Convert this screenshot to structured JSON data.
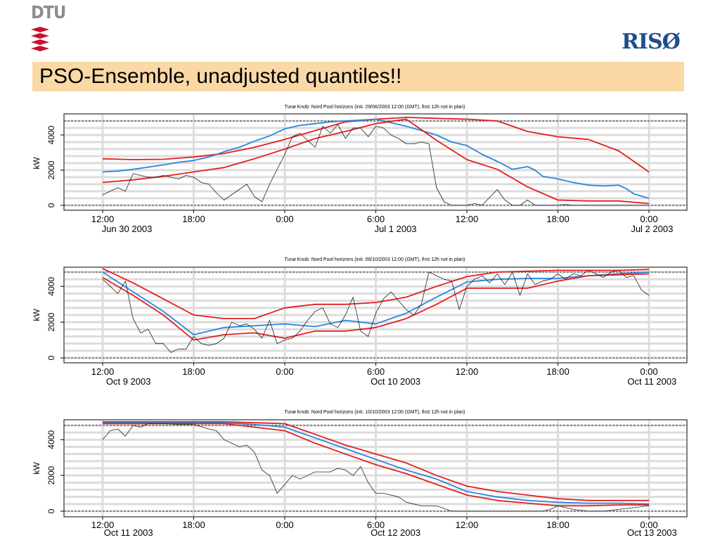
{
  "logos": {
    "dtu": "DTU",
    "riso": "RISØ"
  },
  "slide": {
    "title": "PSO-Ensemble, unadjusted quantiles!!"
  },
  "colors": {
    "quantile": "#e41e1e",
    "median": "#2a86e0",
    "observed": "#222222",
    "title_bg": "#fad9a6"
  },
  "chart_data": [
    {
      "type": "line",
      "title": "Tunø Knob: Nord Pool horizons (init. 29/06/2003 12:00 (GMT), first 12h not in plan)",
      "ylabel": "kW",
      "ylim": [
        0,
        4800
      ],
      "yticks": [
        0,
        2000,
        4000
      ],
      "xlim": [
        0,
        36
      ],
      "xticks": [
        0,
        6,
        12,
        18,
        24,
        30,
        36
      ],
      "xtick_labels": [
        "12:00",
        "18:00",
        "0:00",
        "6:00",
        "12:00",
        "18:00",
        "0:00"
      ],
      "date_labels": [
        {
          "label": "Jun 30 2003",
          "x": 1.6
        },
        {
          "label": "Jul 1 2003",
          "x": 19.3
        },
        {
          "label": "Jul 2 2003",
          "x": 36.2
        }
      ],
      "series": [
        {
          "role": "upper",
          "x": [
            0,
            2,
            4,
            6,
            8,
            10,
            12,
            14,
            16,
            18,
            20,
            22,
            24,
            26,
            28,
            30,
            32,
            34,
            36
          ],
          "values": [
            2650,
            2600,
            2620,
            2750,
            2950,
            3300,
            3750,
            4250,
            4750,
            4900,
            5000,
            4950,
            4900,
            4800,
            4200,
            3900,
            3750,
            3100,
            1900
          ]
        },
        {
          "role": "median",
          "x": [
            0,
            1,
            2,
            4,
            5,
            6,
            7,
            8,
            9,
            10,
            11,
            12,
            13,
            14,
            15,
            16,
            17,
            18,
            19,
            20,
            21,
            22,
            22.5,
            23,
            24,
            25,
            26,
            27,
            28,
            28.5,
            29,
            30,
            31,
            32,
            33,
            34,
            34.5,
            35,
            36
          ],
          "values": [
            1900,
            1950,
            2050,
            2300,
            2450,
            2550,
            2750,
            3050,
            3300,
            3650,
            3950,
            4350,
            4550,
            4650,
            4750,
            4800,
            4850,
            4900,
            4700,
            4500,
            4250,
            4000,
            3800,
            3600,
            3400,
            2900,
            2500,
            2050,
            2200,
            2000,
            1650,
            1500,
            1300,
            1150,
            1100,
            1150,
            950,
            650,
            400
          ]
        },
        {
          "role": "lower",
          "x": [
            0,
            2,
            4,
            6,
            8,
            10,
            12,
            14,
            16,
            18,
            20,
            22,
            24,
            26,
            28,
            30,
            32,
            34,
            36
          ],
          "values": [
            1300,
            1450,
            1650,
            1900,
            2150,
            2650,
            3200,
            3800,
            4200,
            4650,
            4900,
            3700,
            2600,
            2050,
            1050,
            300,
            250,
            250,
            100
          ]
        },
        {
          "role": "observed",
          "x": [
            0,
            1,
            1.5,
            2,
            3,
            3.5,
            4,
            5,
            5.5,
            6,
            6.5,
            7,
            7.5,
            8,
            9,
            9.5,
            10,
            10.5,
            11,
            12,
            12.5,
            13,
            14,
            14.5,
            15,
            15.5,
            16,
            16.5,
            17,
            17.5,
            18,
            18.5,
            19,
            19.5,
            20,
            20.5,
            21,
            21.5,
            22,
            22.5,
            23,
            24,
            24.5,
            25,
            26,
            26.5,
            27,
            27.5,
            28,
            28.5,
            29,
            30,
            30.5,
            31,
            31.5,
            32,
            34,
            36
          ],
          "values": [
            600,
            1000,
            800,
            1800,
            1600,
            1600,
            1700,
            1500,
            1700,
            1600,
            1300,
            1200,
            700,
            300,
            900,
            1200,
            500,
            200,
            1200,
            2900,
            3900,
            4100,
            3300,
            4500,
            4100,
            4600,
            3800,
            4400,
            4400,
            3900,
            4500,
            4400,
            4000,
            3800,
            3500,
            3500,
            3600,
            3500,
            1000,
            200,
            0,
            0,
            100,
            0,
            900,
            300,
            0,
            0,
            300,
            0,
            0,
            0,
            50,
            0,
            0,
            0,
            0,
            0
          ]
        }
      ]
    },
    {
      "type": "line",
      "title": "Tunø Knob: Nord Pool horizons (init. 08/10/2003 12:00 (GMT), first 12h not in plan)",
      "ylabel": "kW",
      "ylim": [
        0,
        4800
      ],
      "yticks": [
        0,
        2000,
        4000
      ],
      "xlim": [
        0,
        36
      ],
      "xticks": [
        0,
        6,
        12,
        18,
        24,
        30,
        36
      ],
      "xtick_labels": [
        "12:00",
        "18:00",
        "0:00",
        "6:00",
        "12:00",
        "18:00",
        "0:00"
      ],
      "date_labels": [
        {
          "label": "Oct 9 2003",
          "x": 1.7
        },
        {
          "label": "Oct 10 2003",
          "x": 19.3
        },
        {
          "label": "Oct 11 2003",
          "x": 36.2
        }
      ],
      "series": [
        {
          "role": "upper",
          "x": [
            0,
            2,
            4,
            6,
            8,
            10,
            12,
            14,
            16,
            18,
            20,
            22,
            24,
            26,
            28,
            30,
            32,
            34,
            36
          ],
          "values": [
            5000,
            4200,
            3300,
            2400,
            2200,
            2200,
            2800,
            3000,
            3000,
            3100,
            3400,
            4000,
            4550,
            4800,
            4850,
            4900,
            4900,
            4900,
            4950
          ]
        },
        {
          "role": "median",
          "x": [
            0,
            2,
            4,
            6,
            8,
            10,
            12,
            14,
            16,
            18,
            20,
            22,
            24,
            26,
            28,
            30,
            32,
            34,
            36
          ],
          "values": [
            4800,
            3700,
            2600,
            1300,
            1700,
            1800,
            1900,
            1750,
            2100,
            1900,
            2500,
            3400,
            4250,
            4400,
            4450,
            4450,
            4600,
            4700,
            4800
          ]
        },
        {
          "role": "lower",
          "x": [
            0,
            2,
            4,
            6,
            8,
            10,
            12,
            14,
            16,
            18,
            20,
            22,
            24,
            26,
            28,
            30,
            32,
            34,
            36
          ],
          "values": [
            4500,
            3500,
            2400,
            1000,
            1300,
            1400,
            1100,
            1500,
            1500,
            1700,
            2200,
            3000,
            3900,
            3900,
            3900,
            4300,
            4600,
            4650,
            4700
          ]
        },
        {
          "role": "observed",
          "x": [
            0,
            1,
            1.5,
            2,
            2.5,
            3,
            3.5,
            4,
            4.5,
            5,
            5.5,
            6,
            6.5,
            7,
            7.5,
            8,
            8.5,
            9,
            9.5,
            10,
            10.5,
            11,
            11.5,
            12,
            12.5,
            13,
            13.5,
            14,
            14.5,
            15,
            15.5,
            16,
            16.5,
            17,
            17.5,
            18,
            18.5,
            19,
            19.5,
            20,
            20.5,
            21,
            21.5,
            22,
            22.5,
            23,
            23.5,
            24,
            24.5,
            25,
            25.5,
            26,
            26.5,
            27,
            27.5,
            28,
            28.5,
            29,
            29.5,
            30,
            30.5,
            31,
            31.5,
            32,
            32.5,
            33,
            33.5,
            34,
            34.5,
            35,
            35.5,
            36
          ],
          "values": [
            4400,
            3600,
            4300,
            2200,
            1400,
            1600,
            800,
            800,
            300,
            500,
            500,
            1200,
            800,
            700,
            800,
            1100,
            2000,
            1800,
            1900,
            1600,
            1100,
            2100,
            800,
            1000,
            1100,
            1500,
            2100,
            2600,
            2800,
            1900,
            1700,
            2400,
            3400,
            1500,
            1200,
            2500,
            3300,
            3700,
            3200,
            2700,
            2400,
            3000,
            4800,
            4600,
            4400,
            4300,
            2700,
            4000,
            4400,
            4600,
            4200,
            4700,
            4100,
            4800,
            3500,
            4700,
            4100,
            4300,
            4400,
            4700,
            4400,
            4700,
            4600,
            4900,
            4700,
            4500,
            4800,
            4900,
            4500,
            4600,
            3800,
            3500
          ]
        }
      ]
    },
    {
      "type": "line",
      "title": "Tunø Knob: Nord Pool horizons (init. 10/10/2003 12:00 (GMT), first 12h not in plan)",
      "ylabel": "kW",
      "ylim": [
        0,
        4800
      ],
      "yticks": [
        0,
        2000,
        4000
      ],
      "xlim": [
        0,
        36
      ],
      "xticks": [
        0,
        6,
        12,
        18,
        24,
        30,
        36
      ],
      "xtick_labels": [
        "12:00",
        "18:00",
        "0:00",
        "6:00",
        "12:00",
        "18:00",
        "0:00"
      ],
      "date_labels": [
        {
          "label": "Oct 11 2003",
          "x": 1.7
        },
        {
          "label": "Oct 12 2003",
          "x": 19.3
        },
        {
          "label": "Oct 13 2003",
          "x": 36.2
        }
      ],
      "series": [
        {
          "role": "upper",
          "x": [
            0,
            2,
            4,
            6,
            8,
            10,
            12,
            14,
            16,
            18,
            20,
            22,
            24,
            26,
            28,
            30,
            32,
            34,
            36
          ],
          "values": [
            5000,
            5000,
            5000,
            5000,
            5000,
            4950,
            4900,
            4300,
            3700,
            3200,
            2700,
            2000,
            1400,
            1100,
            900,
            700,
            600,
            600,
            600
          ]
        },
        {
          "role": "median",
          "x": [
            0,
            2,
            4,
            6,
            8,
            10,
            12,
            14,
            16,
            18,
            20,
            22,
            24,
            26,
            28,
            30,
            32,
            34,
            36
          ],
          "values": [
            4950,
            4950,
            4950,
            4950,
            4950,
            4850,
            4700,
            4100,
            3500,
            2900,
            2300,
            1800,
            1100,
            800,
            600,
            500,
            450,
            450,
            400
          ]
        },
        {
          "role": "lower",
          "x": [
            0,
            2,
            4,
            6,
            8,
            10,
            12,
            14,
            16,
            18,
            20,
            22,
            24,
            26,
            28,
            30,
            32,
            34,
            36
          ],
          "values": [
            4900,
            4900,
            4900,
            4900,
            4900,
            4700,
            4500,
            3800,
            3200,
            2600,
            2100,
            1500,
            900,
            600,
            450,
            300,
            300,
            350,
            350
          ]
        },
        {
          "role": "observed",
          "x": [
            0,
            0.5,
            1,
            1.5,
            2,
            2.5,
            3,
            4,
            5,
            6,
            7,
            7.5,
            8,
            8.5,
            9,
            9.5,
            10,
            10.5,
            11,
            11.5,
            12,
            12.5,
            13,
            13.5,
            14,
            15,
            15.5,
            16,
            16.5,
            17,
            17.5,
            18,
            18.5,
            19,
            19.5,
            20,
            21,
            22,
            23,
            23.5,
            24,
            24.5,
            25,
            26,
            27,
            28,
            29,
            29.5,
            30,
            30.5,
            31,
            32,
            33,
            34,
            35,
            36
          ],
          "values": [
            4000,
            4500,
            4600,
            4200,
            4800,
            4700,
            4900,
            4900,
            4850,
            4850,
            4600,
            4500,
            4000,
            3800,
            3600,
            3700,
            3300,
            2300,
            2000,
            1000,
            1500,
            2000,
            1800,
            2000,
            2200,
            2200,
            2400,
            2300,
            2000,
            2500,
            1600,
            1000,
            1000,
            900,
            800,
            500,
            300,
            300,
            0,
            0,
            0,
            0,
            0,
            0,
            0,
            0,
            0,
            100,
            300,
            200,
            100,
            0,
            0,
            100,
            200,
            300
          ]
        }
      ]
    }
  ]
}
